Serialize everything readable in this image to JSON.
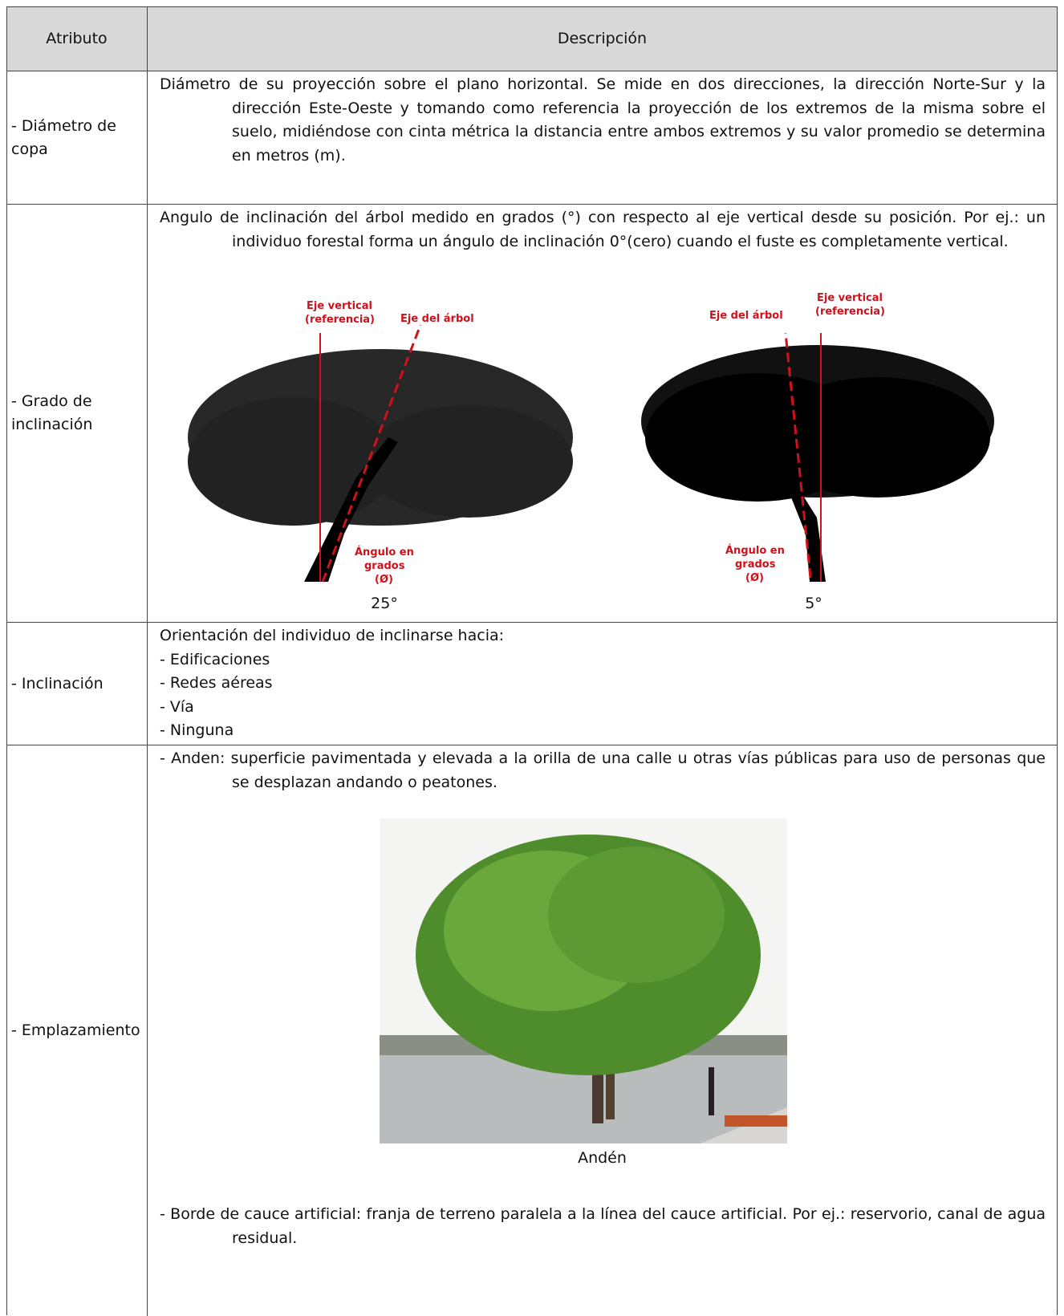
{
  "table": {
    "header": [
      "Atributo",
      "Descripción"
    ],
    "rows": [
      {
        "attribute": "- Diámetro de copa",
        "description": "Diámetro de su proyección sobre el plano horizontal. Se mide en dos direcciones, la dirección Norte-Sur y la dirección Este-Oeste y tomando como referencia la proyección de los extremos de la misma sobre el suelo, midiéndose con cinta métrica la distancia entre ambos extremos y su valor promedio se determina en metros (m)."
      },
      {
        "attribute": "- Grado de inclinación",
        "description": "Angulo de inclinación del árbol medido en grados (°) con respecto al eje vertical desde su posición. Por ej.: un individuo forestal forma un ángulo de inclinación 0°(cero) cuando el fuste es completamente vertical.",
        "figures": [
          {
            "vertical_axis": [
              "Eje vertical",
              "(referencia)"
            ],
            "tree_axis": "Eje del árbol",
            "angle": [
              "Ángulo en",
              "grados",
              "(Ø)"
            ],
            "caption": "25°"
          },
          {
            "vertical_axis": [
              "Eje vertical",
              "(referencia)"
            ],
            "tree_axis": "Eje del árbol",
            "angle": [
              "Ángulo en",
              "grados",
              "(Ø)"
            ],
            "caption": "5°"
          }
        ]
      },
      {
        "attribute": "- Inclinación",
        "description": "Orientación del individuo de inclinarse hacia:",
        "items": [
          "- Edificaciones",
          "- Redes aéreas",
          "- Vía",
          "- Ninguna"
        ]
      },
      {
        "attribute": "- Emplazamiento",
        "description": "- Anden: superficie pavimentada y elevada a la orilla de una calle u otras vías públicas para uso de personas que se desplazan andando o peatones.",
        "figure_caption": "Andén",
        "description_2": "- Borde de cauce artificial: franja de terreno paralela a la línea del cauce artificial. Por ej.: reservorio, canal de agua residual."
      }
    ]
  }
}
